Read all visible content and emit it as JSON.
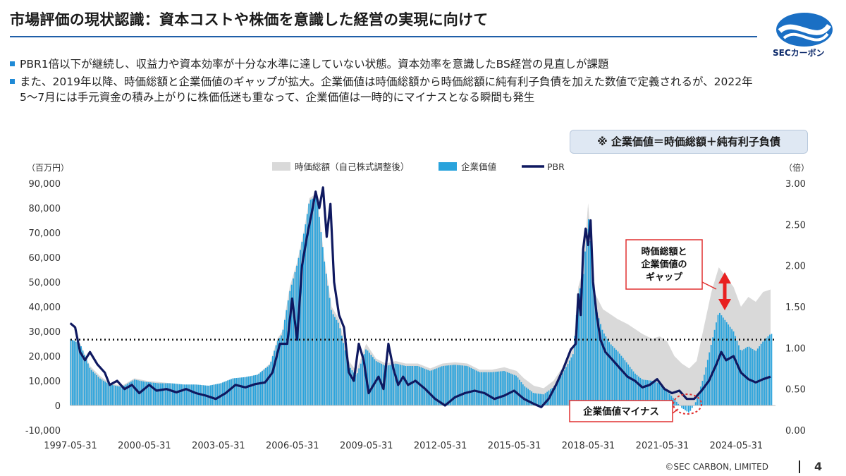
{
  "header": {
    "title": "市場評価の現状認識：資本コストや株価を意識した経営の実現に向けて",
    "logo_text": "SECカーボン"
  },
  "bullets": [
    "PBR1倍以下が継続し、収益力や資本効率が十分な水準に達していない状態。資本効率を意識したBS経営の見直しが課題",
    "また、2019年以降、時価総額と企業価値のギャップが拡大。企業価値は時価総額から時価総額に純有利子負債を加えた数値で定義されるが、2022年5～7月には手元資金の積み上がりに株価低迷も重なって、企業価値は一時的にマイナスとなる瞬間も発生"
  ],
  "note": "※ 企業価値＝時価総額＋純有利子負債",
  "chart_data": {
    "type": "bar",
    "title": "",
    "left_unit": "（百万円）",
    "right_unit": "（倍）",
    "legend": {
      "market_cap": "時価総額（自己株式調整後）",
      "enterprise_value": "企業価値",
      "pbr": "PBR"
    },
    "y_left": {
      "min": -10000,
      "max": 90000,
      "ticks": [
        "90,000",
        "80,000",
        "70,000",
        "60,000",
        "50,000",
        "40,000",
        "30,000",
        "20,000",
        "10,000",
        "0",
        "-10,000"
      ]
    },
    "y_right": {
      "min": 0,
      "max": 3,
      "ticks": [
        "3.00",
        "2.50",
        "2.00",
        "1.50",
        "1.00",
        "0.50",
        "0.00"
      ]
    },
    "x_range": [
      1997.41,
      2026.0
    ],
    "x_ticks": [
      {
        "label": "1997-05-31",
        "year": 1997.41
      },
      {
        "label": "2000-05-31",
        "year": 2000.41
      },
      {
        "label": "2003-05-31",
        "year": 2003.41
      },
      {
        "label": "2006-05-31",
        "year": 2006.41
      },
      {
        "label": "2009-05-31",
        "year": 2009.41
      },
      {
        "label": "2012-05-31",
        "year": 2012.41
      },
      {
        "label": "2015-05-31",
        "year": 2015.41
      },
      {
        "label": "2018-05-31",
        "year": 2018.41
      },
      {
        "label": "2021-05-31",
        "year": 2021.41
      },
      {
        "label": "2024-05-31",
        "year": 2024.41
      }
    ],
    "pbr_reference": 1.1,
    "market_cap": [
      [
        1997.4,
        27000
      ],
      [
        1997.8,
        25000
      ],
      [
        1998.2,
        16000
      ],
      [
        1998.6,
        12000
      ],
      [
        1999.0,
        9000
      ],
      [
        1999.5,
        8000
      ],
      [
        2000.0,
        11000
      ],
      [
        2000.5,
        10000
      ],
      [
        2001.0,
        9500
      ],
      [
        2001.5,
        9000
      ],
      [
        2002.0,
        8500
      ],
      [
        2002.5,
        8500
      ],
      [
        2003.0,
        8000
      ],
      [
        2003.5,
        9000
      ],
      [
        2004.0,
        11000
      ],
      [
        2004.5,
        11500
      ],
      [
        2005.0,
        12500
      ],
      [
        2005.5,
        17000
      ],
      [
        2005.8,
        27000
      ],
      [
        2006.0,
        30000
      ],
      [
        2006.3,
        48000
      ],
      [
        2006.6,
        58000
      ],
      [
        2006.9,
        72000
      ],
      [
        2007.1,
        84000
      ],
      [
        2007.4,
        86000
      ],
      [
        2007.7,
        60000
      ],
      [
        2008.0,
        40000
      ],
      [
        2008.3,
        35000
      ],
      [
        2008.7,
        18000
      ],
      [
        2009.0,
        14000
      ],
      [
        2009.4,
        25000
      ],
      [
        2009.8,
        19000
      ],
      [
        2010.2,
        17000
      ],
      [
        2010.6,
        18000
      ],
      [
        2011.0,
        17000
      ],
      [
        2011.5,
        17000
      ],
      [
        2012.0,
        15000
      ],
      [
        2012.5,
        17000
      ],
      [
        2013.0,
        17500
      ],
      [
        2013.5,
        17000
      ],
      [
        2014.0,
        14500
      ],
      [
        2014.5,
        14500
      ],
      [
        2015.0,
        15500
      ],
      [
        2015.5,
        14000
      ],
      [
        2015.8,
        11000
      ],
      [
        2016.2,
        8000
      ],
      [
        2016.6,
        7000
      ],
      [
        2017.0,
        10000
      ],
      [
        2017.4,
        16000
      ],
      [
        2017.8,
        23000
      ],
      [
        2018.0,
        48000
      ],
      [
        2018.2,
        55000
      ],
      [
        2018.4,
        82000
      ],
      [
        2018.7,
        45000
      ],
      [
        2019.0,
        39000
      ],
      [
        2019.3,
        37000
      ],
      [
        2019.6,
        35000
      ],
      [
        2020.0,
        33000
      ],
      [
        2020.3,
        31000
      ],
      [
        2020.6,
        29000
      ],
      [
        2021.0,
        27000
      ],
      [
        2021.3,
        28000
      ],
      [
        2021.6,
        26000
      ],
      [
        2021.9,
        20000
      ],
      [
        2022.2,
        17000
      ],
      [
        2022.5,
        15000
      ],
      [
        2022.8,
        18000
      ],
      [
        2023.1,
        32000
      ],
      [
        2023.4,
        46000
      ],
      [
        2023.7,
        56000
      ],
      [
        2024.0,
        52000
      ],
      [
        2024.3,
        48000
      ],
      [
        2024.6,
        40000
      ],
      [
        2024.9,
        44000
      ],
      [
        2025.2,
        42000
      ],
      [
        2025.5,
        46000
      ],
      [
        2025.8,
        47000
      ]
    ],
    "enterprise_value": [
      [
        1997.4,
        27000
      ],
      [
        1997.8,
        25000
      ],
      [
        1998.2,
        15000
      ],
      [
        1998.6,
        11000
      ],
      [
        1999.0,
        8500
      ],
      [
        1999.5,
        7500
      ],
      [
        2000.0,
        10500
      ],
      [
        2000.5,
        9500
      ],
      [
        2001.0,
        9000
      ],
      [
        2001.5,
        9000
      ],
      [
        2002.0,
        8500
      ],
      [
        2002.5,
        8500
      ],
      [
        2003.0,
        8000
      ],
      [
        2003.5,
        9000
      ],
      [
        2004.0,
        11000
      ],
      [
        2004.5,
        11500
      ],
      [
        2005.0,
        12500
      ],
      [
        2005.5,
        16500
      ],
      [
        2005.8,
        26000
      ],
      [
        2006.0,
        29000
      ],
      [
        2006.3,
        46000
      ],
      [
        2006.6,
        57000
      ],
      [
        2006.9,
        71000
      ],
      [
        2007.1,
        83000
      ],
      [
        2007.4,
        85000
      ],
      [
        2007.7,
        59000
      ],
      [
        2008.0,
        38000
      ],
      [
        2008.3,
        33000
      ],
      [
        2008.7,
        16000
      ],
      [
        2009.0,
        12000
      ],
      [
        2009.4,
        23000
      ],
      [
        2009.8,
        18000
      ],
      [
        2010.2,
        16000
      ],
      [
        2010.6,
        17000
      ],
      [
        2011.0,
        16000
      ],
      [
        2011.5,
        16000
      ],
      [
        2012.0,
        14000
      ],
      [
        2012.5,
        16000
      ],
      [
        2013.0,
        16500
      ],
      [
        2013.5,
        16000
      ],
      [
        2014.0,
        13500
      ],
      [
        2014.5,
        13500
      ],
      [
        2015.0,
        14000
      ],
      [
        2015.5,
        12000
      ],
      [
        2015.8,
        8000
      ],
      [
        2016.2,
        5000
      ],
      [
        2016.6,
        4500
      ],
      [
        2017.0,
        7500
      ],
      [
        2017.4,
        13500
      ],
      [
        2017.8,
        21000
      ],
      [
        2018.0,
        45000
      ],
      [
        2018.2,
        52000
      ],
      [
        2018.4,
        78000
      ],
      [
        2018.7,
        40000
      ],
      [
        2019.0,
        30000
      ],
      [
        2019.3,
        25000
      ],
      [
        2019.6,
        22000
      ],
      [
        2020.0,
        17000
      ],
      [
        2020.3,
        13000
      ],
      [
        2020.6,
        10500
      ],
      [
        2021.0,
        10000
      ],
      [
        2021.3,
        9000
      ],
      [
        2021.6,
        6000
      ],
      [
        2021.9,
        2500
      ],
      [
        2022.2,
        -1000
      ],
      [
        2022.5,
        -3000
      ],
      [
        2022.8,
        2000
      ],
      [
        2023.1,
        12000
      ],
      [
        2023.4,
        25000
      ],
      [
        2023.7,
        38000
      ],
      [
        2024.0,
        34000
      ],
      [
        2024.3,
        30000
      ],
      [
        2024.6,
        22000
      ],
      [
        2024.9,
        24000
      ],
      [
        2025.2,
        22000
      ],
      [
        2025.5,
        26000
      ],
      [
        2025.8,
        29000
      ]
    ],
    "pbr": [
      [
        1997.4,
        1.3
      ],
      [
        1997.6,
        1.25
      ],
      [
        1997.8,
        0.95
      ],
      [
        1998.0,
        0.85
      ],
      [
        1998.2,
        0.95
      ],
      [
        1998.5,
        0.8
      ],
      [
        1998.8,
        0.7
      ],
      [
        1999.0,
        0.55
      ],
      [
        1999.3,
        0.6
      ],
      [
        1999.6,
        0.5
      ],
      [
        1999.9,
        0.55
      ],
      [
        2000.2,
        0.45
      ],
      [
        2000.6,
        0.55
      ],
      [
        2000.9,
        0.48
      ],
      [
        2001.3,
        0.5
      ],
      [
        2001.7,
        0.46
      ],
      [
        2002.1,
        0.5
      ],
      [
        2002.5,
        0.45
      ],
      [
        2002.9,
        0.42
      ],
      [
        2003.3,
        0.38
      ],
      [
        2003.7,
        0.45
      ],
      [
        2004.1,
        0.55
      ],
      [
        2004.5,
        0.52
      ],
      [
        2004.9,
        0.56
      ],
      [
        2005.3,
        0.58
      ],
      [
        2005.6,
        0.7
      ],
      [
        2005.9,
        1.05
      ],
      [
        2006.2,
        1.05
      ],
      [
        2006.4,
        1.6
      ],
      [
        2006.6,
        1.1
      ],
      [
        2006.8,
        2.0
      ],
      [
        2007.0,
        2.35
      ],
      [
        2007.2,
        2.65
      ],
      [
        2007.35,
        2.9
      ],
      [
        2007.5,
        2.7
      ],
      [
        2007.65,
        2.95
      ],
      [
        2007.8,
        2.35
      ],
      [
        2007.95,
        2.75
      ],
      [
        2008.1,
        1.8
      ],
      [
        2008.3,
        1.4
      ],
      [
        2008.5,
        1.25
      ],
      [
        2008.7,
        0.7
      ],
      [
        2008.9,
        0.6
      ],
      [
        2009.1,
        1.05
      ],
      [
        2009.3,
        0.85
      ],
      [
        2009.5,
        0.45
      ],
      [
        2009.7,
        0.55
      ],
      [
        2009.9,
        0.65
      ],
      [
        2010.1,
        0.5
      ],
      [
        2010.3,
        1.05
      ],
      [
        2010.5,
        0.75
      ],
      [
        2010.7,
        0.55
      ],
      [
        2010.9,
        0.65
      ],
      [
        2011.1,
        0.55
      ],
      [
        2011.4,
        0.6
      ],
      [
        2011.8,
        0.5
      ],
      [
        2012.2,
        0.38
      ],
      [
        2012.6,
        0.3
      ],
      [
        2013.0,
        0.4
      ],
      [
        2013.4,
        0.45
      ],
      [
        2013.8,
        0.48
      ],
      [
        2014.2,
        0.45
      ],
      [
        2014.6,
        0.38
      ],
      [
        2015.0,
        0.42
      ],
      [
        2015.4,
        0.48
      ],
      [
        2015.8,
        0.38
      ],
      [
        2016.2,
        0.32
      ],
      [
        2016.5,
        0.28
      ],
      [
        2016.8,
        0.38
      ],
      [
        2017.1,
        0.55
      ],
      [
        2017.4,
        0.75
      ],
      [
        2017.7,
        0.98
      ],
      [
        2017.9,
        1.05
      ],
      [
        2018.0,
        1.65
      ],
      [
        2018.1,
        1.4
      ],
      [
        2018.2,
        2.2
      ],
      [
        2018.3,
        2.45
      ],
      [
        2018.4,
        2.25
      ],
      [
        2018.5,
        2.55
      ],
      [
        2018.6,
        1.8
      ],
      [
        2018.75,
        1.4
      ],
      [
        2018.9,
        1.1
      ],
      [
        2019.1,
        0.95
      ],
      [
        2019.4,
        0.85
      ],
      [
        2019.7,
        0.75
      ],
      [
        2020.0,
        0.65
      ],
      [
        2020.3,
        0.6
      ],
      [
        2020.6,
        0.52
      ],
      [
        2020.9,
        0.55
      ],
      [
        2021.2,
        0.62
      ],
      [
        2021.5,
        0.5
      ],
      [
        2021.8,
        0.45
      ],
      [
        2022.1,
        0.48
      ],
      [
        2022.4,
        0.38
      ],
      [
        2022.7,
        0.38
      ],
      [
        2023.0,
        0.48
      ],
      [
        2023.3,
        0.6
      ],
      [
        2023.6,
        0.8
      ],
      [
        2023.8,
        0.95
      ],
      [
        2024.0,
        0.85
      ],
      [
        2024.3,
        0.9
      ],
      [
        2024.6,
        0.7
      ],
      [
        2024.9,
        0.62
      ],
      [
        2025.2,
        0.58
      ],
      [
        2025.5,
        0.62
      ],
      [
        2025.8,
        0.65
      ]
    ],
    "annotations": {
      "gap_label": "時価総額と\n企業価値の\nギャップ",
      "negative_label": "企業価値マイナス"
    }
  },
  "footer": {
    "copyright": "©SEC CARBON, LIMITED",
    "page": "4"
  }
}
